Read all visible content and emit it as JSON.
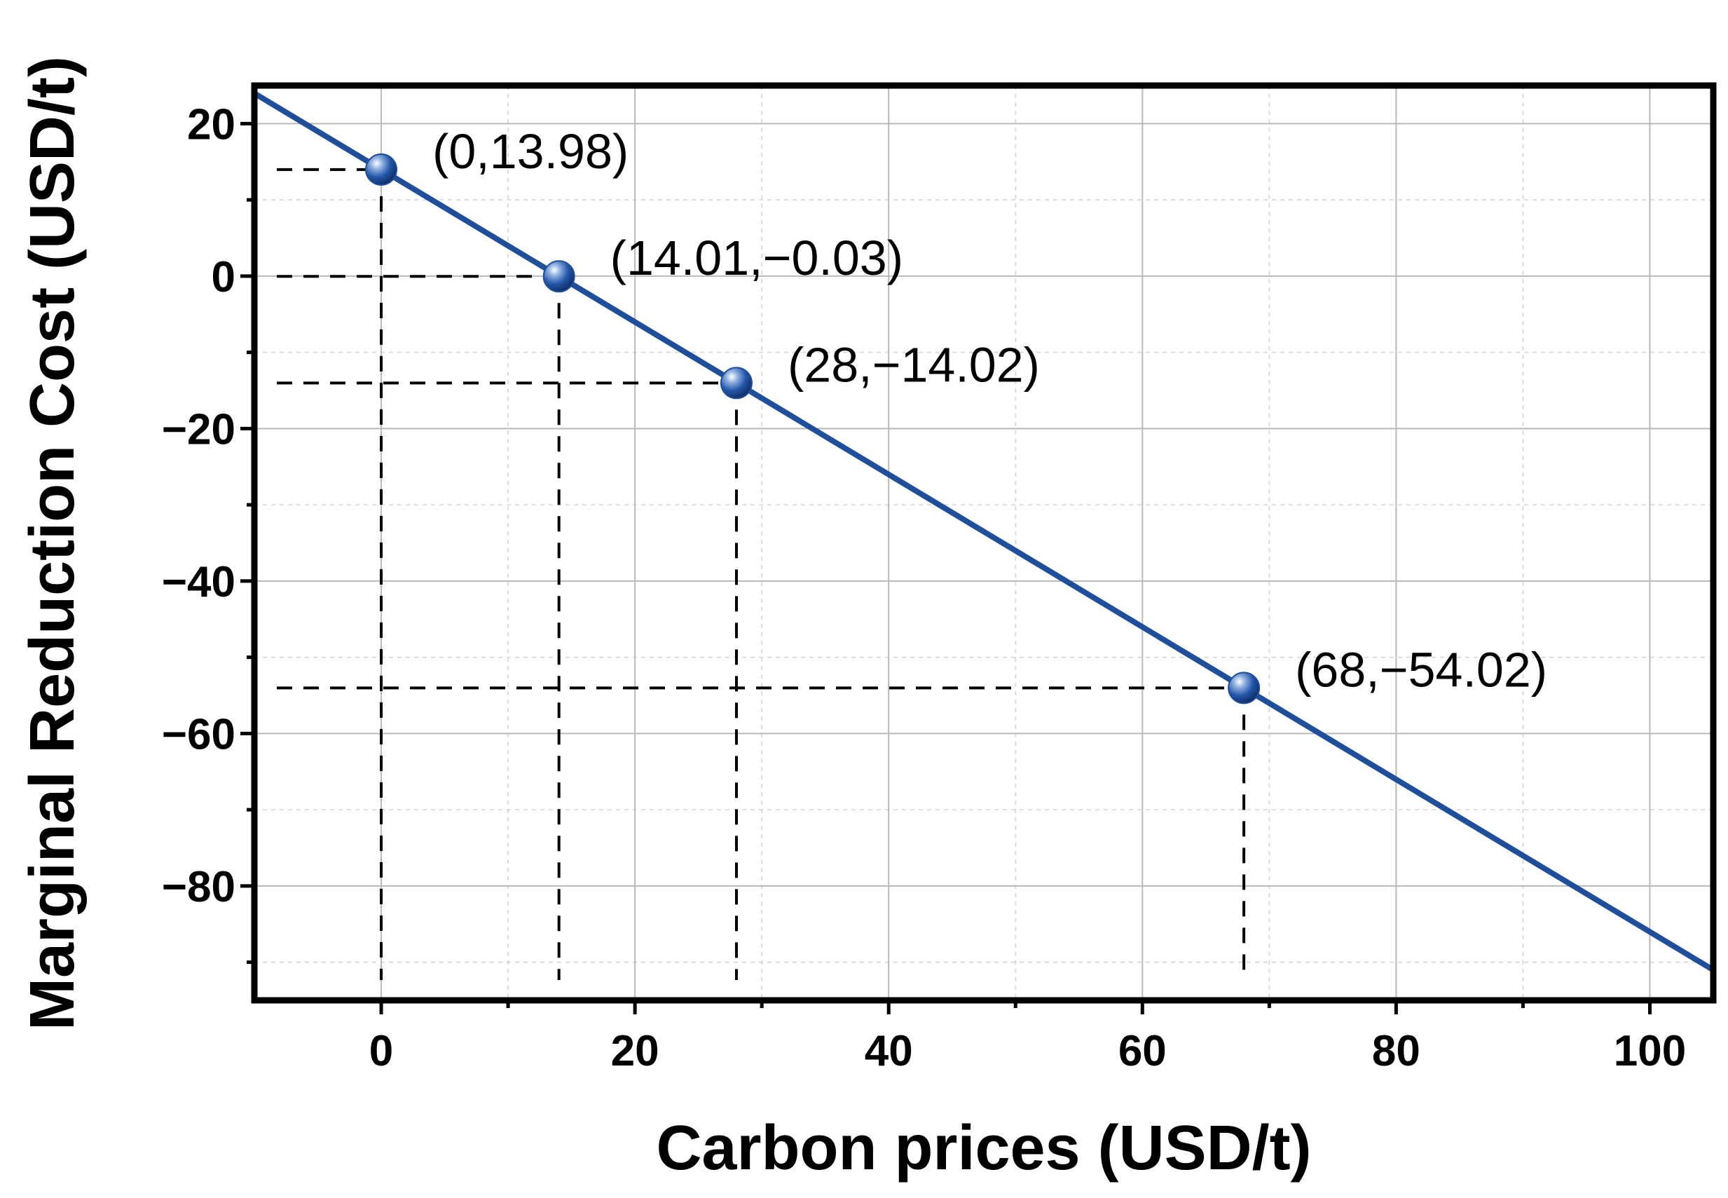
{
  "chart_data": {
    "type": "line",
    "xlabel": "Carbon prices (USD/t)",
    "ylabel": "Marginal Reduction Cost (USD/t)",
    "xlim": [
      -10,
      105
    ],
    "ylim": [
      -95,
      25
    ],
    "x_ticks": [
      0,
      20,
      40,
      60,
      80,
      100
    ],
    "y_ticks": [
      20,
      0,
      -20,
      -40,
      -60,
      -80
    ],
    "x_tick_labels": [
      "0",
      "20",
      "40",
      "60",
      "80",
      "100"
    ],
    "y_tick_labels": [
      "20",
      "0",
      "−20",
      "−40",
      "−60",
      "−80"
    ],
    "grid": true,
    "line": {
      "x": [
        -10,
        105
      ],
      "y": [
        23.98,
        -91.02
      ],
      "color": "#1f4e9a"
    },
    "points": [
      {
        "x": 0,
        "y": 13.98,
        "label": "(0,13.98)"
      },
      {
        "x": 14.01,
        "y": -0.03,
        "label": "(14.01,−0.03)"
      },
      {
        "x": 28,
        "y": -14.02,
        "label": "(28,−14.02)"
      },
      {
        "x": 68,
        "y": -54.02,
        "label": "(68,−54.02)"
      }
    ],
    "point_color": "#1f4e9a"
  }
}
